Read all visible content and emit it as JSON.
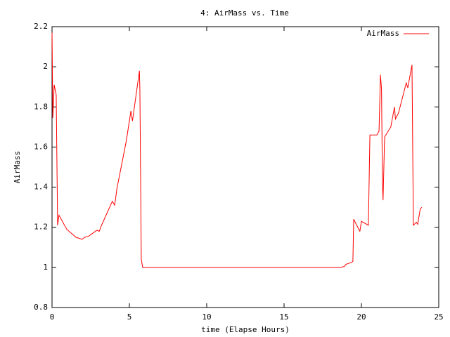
{
  "chart_data": {
    "type": "line",
    "title": "4: AirMass vs. Time",
    "x_label": "time (Elapse Hours)",
    "y_label": "AirMass",
    "x": [
      0,
      0.05,
      0.14,
      0.27,
      0.36,
      0.45,
      0.95,
      1.55,
      1.95,
      2.1,
      2.36,
      2.9,
      3.05,
      3.2,
      3.9,
      4.05,
      4.2,
      4.8,
      5.1,
      5.2,
      5.65,
      5.68,
      5.73,
      5.77,
      5.86,
      18.65,
      18.9,
      19.0,
      19.36,
      19.45,
      19.5,
      19.9,
      20.0,
      20.45,
      20.55,
      21.0,
      21.14,
      21.23,
      21.3,
      21.36,
      21.4,
      21.5,
      21.9,
      22.14,
      22.2,
      22.4,
      22.9,
      23.0,
      23.27,
      23.36,
      23.55,
      23.64,
      23.8,
      23.9
    ],
    "series": [
      {
        "name": "AirMass",
        "color": "#ff0000",
        "values": [
          2.17,
          1.745,
          1.91,
          1.86,
          1.21,
          1.26,
          1.19,
          1.15,
          1.14,
          1.15,
          1.155,
          1.185,
          1.18,
          1.21,
          1.33,
          1.31,
          1.395,
          1.63,
          1.78,
          1.73,
          1.98,
          1.88,
          1.42,
          1.04,
          1.0,
          1.0,
          1.005,
          1.015,
          1.025,
          1.03,
          1.24,
          1.18,
          1.23,
          1.21,
          1.66,
          1.66,
          1.68,
          1.96,
          1.89,
          1.42,
          1.335,
          1.65,
          1.7,
          1.8,
          1.74,
          1.77,
          1.92,
          1.895,
          2.01,
          1.21,
          1.225,
          1.215,
          1.29,
          1.3
        ]
      }
    ],
    "xlim": [
      0,
      25
    ],
    "xticks": [
      0,
      5,
      10,
      15,
      20,
      25
    ],
    "ylim": [
      0.8,
      2.2
    ],
    "yticks": [
      0.8,
      1,
      1.2,
      1.4,
      1.6,
      1.8,
      2,
      2.2
    ],
    "legend": "upper right",
    "grid": false
  }
}
